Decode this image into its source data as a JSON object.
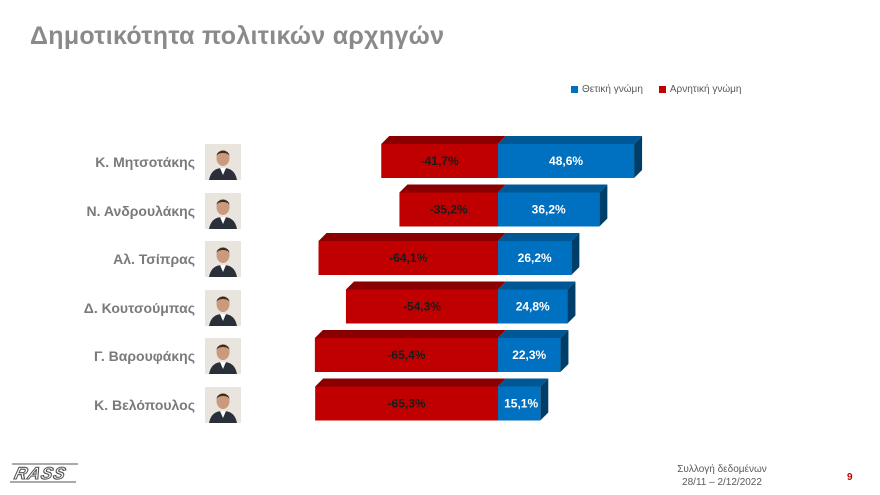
{
  "title": "Δημοτικότητα πολιτικών αρχηγών",
  "colors": {
    "positive": "#0070c0",
    "negative": "#c00000"
  },
  "chart_data": {
    "type": "bar",
    "orientation": "horizontal-diverging",
    "categories": [
      "Κ. Μητσοτάκης",
      "Ν. Ανδρουλάκης",
      "Αλ. Τσίπρας",
      "Δ. Κουτσούμπας",
      "Γ. Βαρουφάκης",
      "Κ. Βελόπουλος"
    ],
    "series": [
      {
        "name": "Θετική γνώμη",
        "color": "#0070c0",
        "values": [
          48.6,
          36.2,
          26.2,
          24.8,
          22.3,
          15.1
        ],
        "labels": [
          "48,6%",
          "36,2%",
          "26,2%",
          "24,8%",
          "22,3%",
          "15,1%"
        ]
      },
      {
        "name": "Αρνητική γνώμη",
        "color": "#c00000",
        "values": [
          -41.7,
          -35.2,
          -64.1,
          -54.3,
          -65.4,
          -65.3
        ],
        "labels": [
          "-41,7%",
          "-35,2%",
          "-64,1%",
          "-54,3%",
          "-65,4%",
          "-65,3%"
        ]
      }
    ],
    "legend_position": "top-right",
    "style": "3d"
  },
  "footer": {
    "source_line1": "Συλλογή δεδομένων",
    "source_line2": "28/11 – 2/12/2022",
    "page_number": "9"
  },
  "logo_text": "RASS"
}
